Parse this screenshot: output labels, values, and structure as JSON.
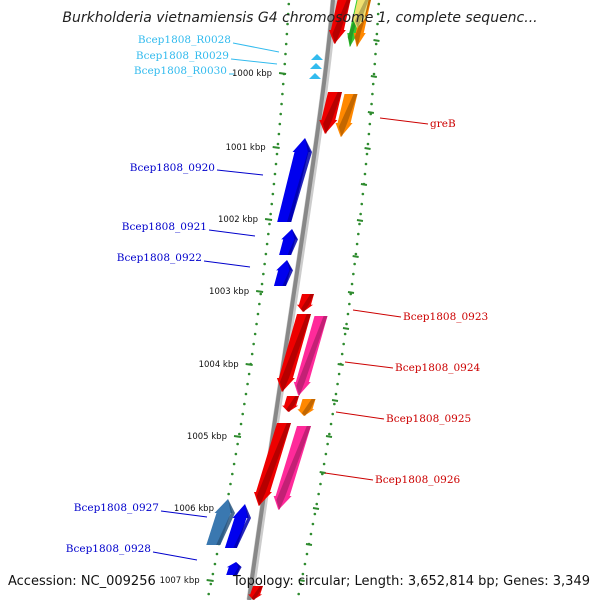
{
  "title": "Burkholderia vietnamiensis G4 chromosome 1, complete sequenc...",
  "footer": {
    "accession": "Accession: NC_009256",
    "topology": "Topology: circular; Length: 3,652,814 bp; Genes: 3,349"
  },
  "colors": {
    "backbone": "#888888",
    "tick": "#2e8b2e",
    "rna_label": "#33bbee",
    "gene_left": "#0000cc",
    "gene_right": "#cc0000",
    "blue": "#0000ee",
    "steel": "#3a78b0",
    "red": "#ee0000",
    "orange": "#ff8800",
    "pink": "#ff2a9a",
    "green": "#33cc33",
    "yellow": "#f0e070",
    "cyan": "#33bbee"
  },
  "kbp_labels": [
    "1000 kbp",
    "1001 kbp",
    "1002 kbp",
    "1003 kbp",
    "1004 kbp",
    "1005 kbp",
    "1006 kbp",
    "1007 kbp"
  ],
  "labels": [
    {
      "text": "Bcep1808_R0028",
      "color": "rna_label"
    },
    {
      "text": "Bcep1808_R0029",
      "color": "rna_label"
    },
    {
      "text": "Bcep1808_R0030",
      "color": "rna_label"
    },
    {
      "text": "greB",
      "color": "gene_right"
    },
    {
      "text": "Bcep1808_0920",
      "color": "gene_left"
    },
    {
      "text": "Bcep1808_0921",
      "color": "gene_left"
    },
    {
      "text": "Bcep1808_0922",
      "color": "gene_left"
    },
    {
      "text": "Bcep1808_0923",
      "color": "gene_right"
    },
    {
      "text": "Bcep1808_0924",
      "color": "gene_right"
    },
    {
      "text": "Bcep1808_0925",
      "color": "gene_right"
    },
    {
      "text": "Bcep1808_0926",
      "color": "gene_right"
    },
    {
      "text": "Bcep1808_0927",
      "color": "gene_left"
    },
    {
      "text": "Bcep1808_0928",
      "color": "gene_left"
    }
  ]
}
